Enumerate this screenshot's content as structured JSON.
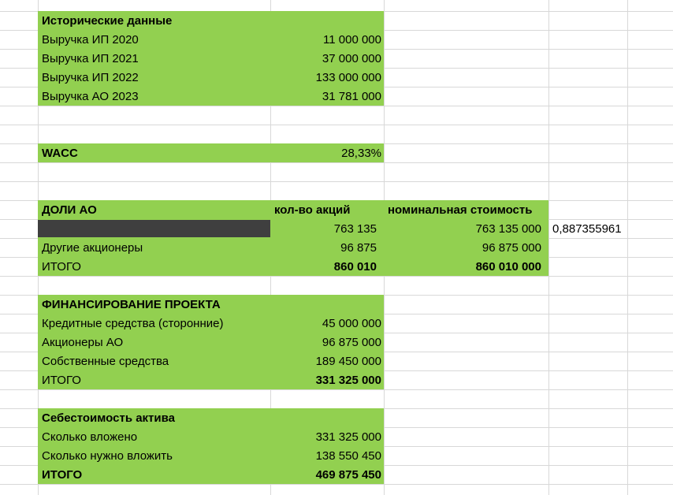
{
  "colors": {
    "green": "#92d050",
    "redacted": "#3f3f3f",
    "gridline": "#d8d8d8"
  },
  "historical": {
    "title": "Исторические данные",
    "rows": [
      {
        "label": "Выручка ИП 2020",
        "value": "11 000 000"
      },
      {
        "label": "Выручка ИП 2021",
        "value": "37 000 000"
      },
      {
        "label": "Выручка ИП 2022",
        "value": "133 000 000"
      },
      {
        "label": "Выручка АО 2023",
        "value": "31 781 000"
      }
    ]
  },
  "wacc": {
    "label": "WACC",
    "value": "28,33%"
  },
  "shares": {
    "title": "ДОЛИ АО",
    "col_shares": "кол-во акций",
    "col_nominal": "номинальная стоимость",
    "rows": [
      {
        "label": "",
        "shares": "763 135",
        "nominal": "763 135 000",
        "extra": "0,887355961"
      },
      {
        "label": "Другие акционеры",
        "shares": "96 875",
        "nominal": "96 875 000"
      }
    ],
    "total": {
      "label": "ИТОГО",
      "shares": "860 010",
      "nominal": "860 010 000"
    }
  },
  "financing": {
    "title": "ФИНАНСИРОВАНИЕ ПРОЕКТА",
    "rows": [
      {
        "label": "Кредитные средства (сторонние)",
        "value": "45 000 000"
      },
      {
        "label": "Акционеры АО",
        "value": "96 875 000"
      },
      {
        "label": "Собственные средства",
        "value": "189 450 000"
      }
    ],
    "total": {
      "label": "ИТОГО",
      "value": "331 325 000"
    }
  },
  "asset_cost": {
    "title": "Себестоимость актива",
    "rows": [
      {
        "label": "Сколько вложено",
        "value": "331 325 000"
      },
      {
        "label": "Сколько нужно вложить",
        "value": "138 550 450"
      }
    ],
    "total": {
      "label": "ИТОГО",
      "value": "469 875 450"
    }
  }
}
